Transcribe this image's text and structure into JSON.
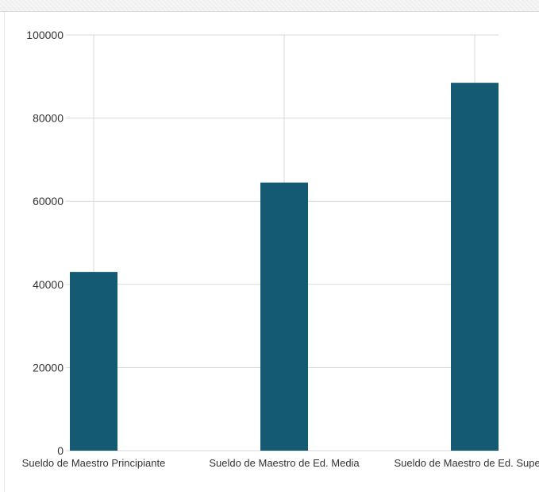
{
  "chart_data": {
    "type": "bar",
    "categories": [
      "Sueldo de Maestro Principiante",
      "Sueldo de Maestro de Ed. Media",
      "Sueldo de Maestro de Ed. Superior"
    ],
    "values": [
      43000,
      64500,
      88500
    ],
    "ylim": [
      0,
      100000
    ],
    "yticks": [
      0,
      20000,
      40000,
      60000,
      80000,
      100000
    ],
    "title": "",
    "xlabel": "",
    "ylabel": "",
    "grid": true,
    "bar_color": "#135a72",
    "grid_color": "#d9d9d9"
  }
}
